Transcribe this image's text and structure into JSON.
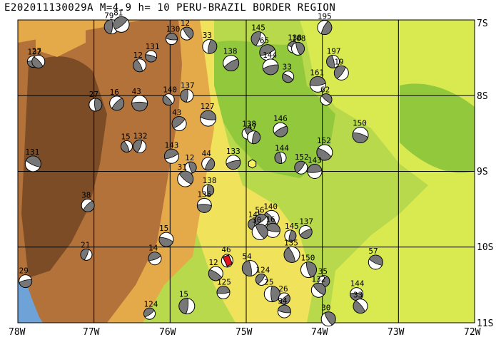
{
  "header": {
    "title": "E202011130029A M=4.9 h= 10 PERU-BRAZIL BORDER REGION"
  },
  "axes": {
    "x_ticks": [
      "78W",
      "77W",
      "76W",
      "75W",
      "74W",
      "73W",
      "72W"
    ],
    "y_ticks": [
      "7S",
      "8S",
      "9S",
      "10S",
      "11S"
    ]
  },
  "colors": {
    "sea": "#6fa3d8",
    "lowland_light": "#d6e84a",
    "lowland": "#b6d84a",
    "lowland_dark": "#8ec63a",
    "foothill": "#f2e05a",
    "upland": "#e0a84a",
    "mountain": "#b0703a",
    "mountain_dark": "#7a4a24",
    "target": "#e0141e",
    "mechanism_fill": "#777777"
  },
  "events": [
    {
      "label": "132",
      "x": -77.8,
      "y": -7.55
    },
    {
      "label": "27",
      "x": -77.73,
      "y": -7.55
    },
    {
      "label": "79",
      "x": -76.77,
      "y": -7.09
    },
    {
      "label": "81",
      "x": -76.64,
      "y": -7.06
    },
    {
      "label": "130",
      "x": -75.98,
      "y": -7.25
    },
    {
      "label": "12",
      "x": -75.78,
      "y": -7.18
    },
    {
      "label": "33",
      "x": -75.48,
      "y": -7.35
    },
    {
      "label": "138",
      "x": -75.2,
      "y": -7.57
    },
    {
      "label": "131",
      "x": -76.25,
      "y": -7.48
    },
    {
      "label": "12",
      "x": -76.4,
      "y": -7.6
    },
    {
      "label": "145",
      "x": -74.84,
      "y": -7.25
    },
    {
      "label": "65",
      "x": -74.72,
      "y": -7.43
    },
    {
      "label": "138",
      "x": -74.38,
      "y": -7.36
    },
    {
      "label": "108",
      "x": -74.32,
      "y": -7.38
    },
    {
      "label": "195",
      "x": -73.97,
      "y": -7.1
    },
    {
      "label": "144",
      "x": -74.68,
      "y": -7.62
    },
    {
      "label": "33",
      "x": -74.45,
      "y": -7.75
    },
    {
      "label": "197",
      "x": -73.86,
      "y": -7.55
    },
    {
      "label": "19",
      "x": -73.75,
      "y": -7.7
    },
    {
      "label": "161",
      "x": -74.06,
      "y": -7.85
    },
    {
      "label": "62",
      "x": -73.95,
      "y": -8.05
    },
    {
      "label": "27",
      "x": -76.98,
      "y": -8.12
    },
    {
      "label": "16",
      "x": -76.7,
      "y": -8.1
    },
    {
      "label": "43",
      "x": -76.4,
      "y": -8.1
    },
    {
      "label": "140",
      "x": -76.02,
      "y": -8.05
    },
    {
      "label": "137",
      "x": -75.78,
      "y": -8.0
    },
    {
      "label": "43",
      "x": -75.88,
      "y": -8.37
    },
    {
      "label": "127",
      "x": -75.5,
      "y": -8.3
    },
    {
      "label": "138",
      "x": -74.98,
      "y": -8.5
    },
    {
      "label": "47",
      "x": -74.9,
      "y": -8.55
    },
    {
      "label": "146",
      "x": -74.55,
      "y": -8.45
    },
    {
      "label": "150",
      "x": -73.5,
      "y": -8.52
    },
    {
      "label": "15",
      "x": -76.57,
      "y": -8.67
    },
    {
      "label": "132",
      "x": -76.4,
      "y": -8.67
    },
    {
      "label": "143",
      "x": -75.98,
      "y": -8.8
    },
    {
      "label": "131",
      "x": -77.8,
      "y": -8.9
    },
    {
      "label": "12",
      "x": -75.73,
      "y": -8.95
    },
    {
      "label": "44",
      "x": -75.5,
      "y": -8.9
    },
    {
      "label": "133",
      "x": -75.17,
      "y": -8.88
    },
    {
      "label": "152",
      "x": -73.97,
      "y": -8.75
    },
    {
      "label": "144",
      "x": -74.55,
      "y": -8.82
    },
    {
      "label": "152",
      "x": -74.28,
      "y": -8.95
    },
    {
      "label": "143",
      "x": -74.1,
      "y": -9.0
    },
    {
      "label": "31",
      "x": -75.8,
      "y": -9.1
    },
    {
      "label": "138",
      "x": -75.5,
      "y": -9.25
    },
    {
      "label": "38",
      "x": -77.08,
      "y": -9.45
    },
    {
      "label": "136",
      "x": -75.55,
      "y": -9.45
    },
    {
      "label": "140",
      "x": -74.67,
      "y": -9.62
    },
    {
      "label": "145",
      "x": -74.9,
      "y": -9.7
    },
    {
      "label": "56",
      "x": -74.8,
      "y": -9.65
    },
    {
      "label": "16",
      "x": -74.65,
      "y": -9.78
    },
    {
      "label": "30",
      "x": -74.82,
      "y": -9.8
    },
    {
      "label": "145",
      "x": -74.42,
      "y": -9.85
    },
    {
      "label": "137",
      "x": -74.22,
      "y": -9.8
    },
    {
      "label": "15",
      "x": -76.05,
      "y": -9.9
    },
    {
      "label": "135",
      "x": -74.4,
      "y": -10.1
    },
    {
      "label": "21",
      "x": -77.1,
      "y": -10.1
    },
    {
      "label": "14",
      "x": -76.2,
      "y": -10.15
    },
    {
      "label": "57",
      "x": -73.3,
      "y": -10.2
    },
    {
      "label": "150",
      "x": -74.18,
      "y": -10.3
    },
    {
      "label": "35",
      "x": -73.98,
      "y": -10.45
    },
    {
      "label": "29",
      "x": -77.9,
      "y": -10.45
    },
    {
      "label": "12",
      "x": -75.4,
      "y": -10.35
    },
    {
      "label": "54",
      "x": -74.95,
      "y": -10.28
    },
    {
      "label": "124",
      "x": -74.8,
      "y": -10.43
    },
    {
      "label": "125",
      "x": -75.3,
      "y": -10.6
    },
    {
      "label": "132",
      "x": -74.05,
      "y": -10.57
    },
    {
      "label": "25",
      "x": -74.66,
      "y": -10.62
    },
    {
      "label": "26",
      "x": -74.5,
      "y": -10.68
    },
    {
      "label": "144",
      "x": -73.55,
      "y": -10.62
    },
    {
      "label": "33",
      "x": -73.5,
      "y": -10.78
    },
    {
      "label": "15",
      "x": -75.78,
      "y": -10.78
    },
    {
      "label": "124",
      "x": -76.27,
      "y": -10.88
    },
    {
      "label": "34",
      "x": -74.5,
      "y": -10.85
    },
    {
      "label": "30",
      "x": -73.92,
      "y": -10.95
    }
  ],
  "target_event": {
    "label": "46",
    "x": -75.25,
    "y": -10.18
  },
  "volcano": {
    "x": -74.92,
    "y": -8.9
  }
}
